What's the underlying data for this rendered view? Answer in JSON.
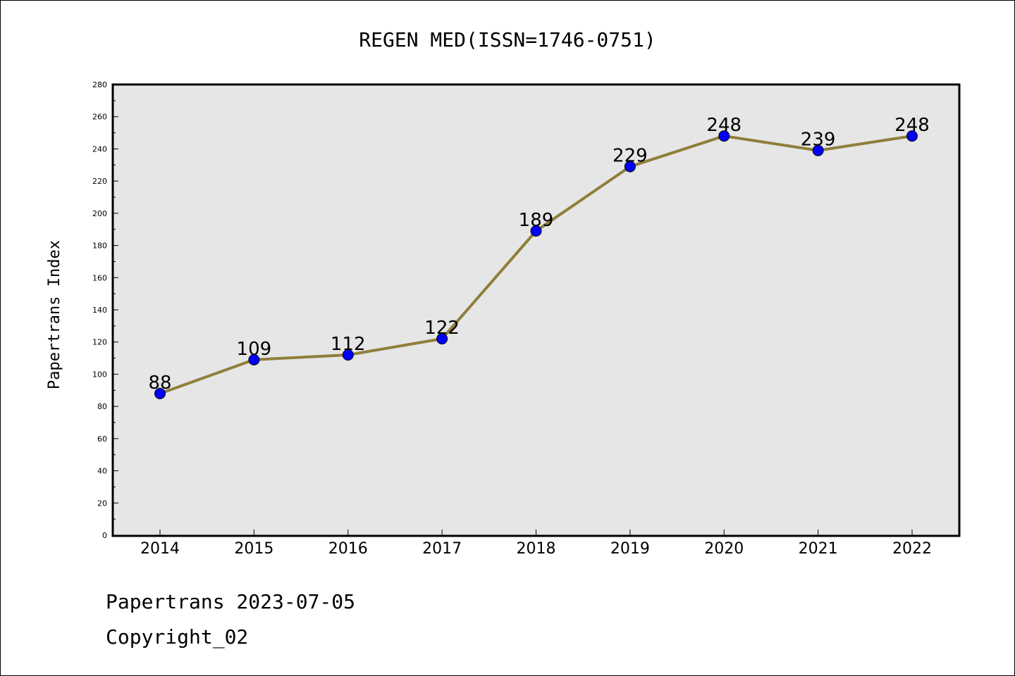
{
  "chart_data": {
    "type": "line",
    "title": "REGEN MED(ISSN=1746-0751)",
    "ylabel": "Papertrans Index",
    "xlabel": "",
    "categories": [
      "2014",
      "2015",
      "2016",
      "2017",
      "2018",
      "2019",
      "2020",
      "2021",
      "2022"
    ],
    "values": [
      88,
      109,
      112,
      122,
      189,
      229,
      248,
      239,
      248
    ],
    "ylim": [
      0,
      280
    ],
    "yticks": [
      0,
      20,
      40,
      60,
      80,
      100,
      120,
      140,
      160,
      180,
      200,
      220,
      240,
      260,
      280
    ],
    "grid": false,
    "line_color": "#8f7f3a",
    "marker_color": "#0000ff",
    "plot_background": "#e6e6e6"
  },
  "footer": {
    "line1": "Papertrans 2023-07-05",
    "line2": "Copyright_02"
  }
}
